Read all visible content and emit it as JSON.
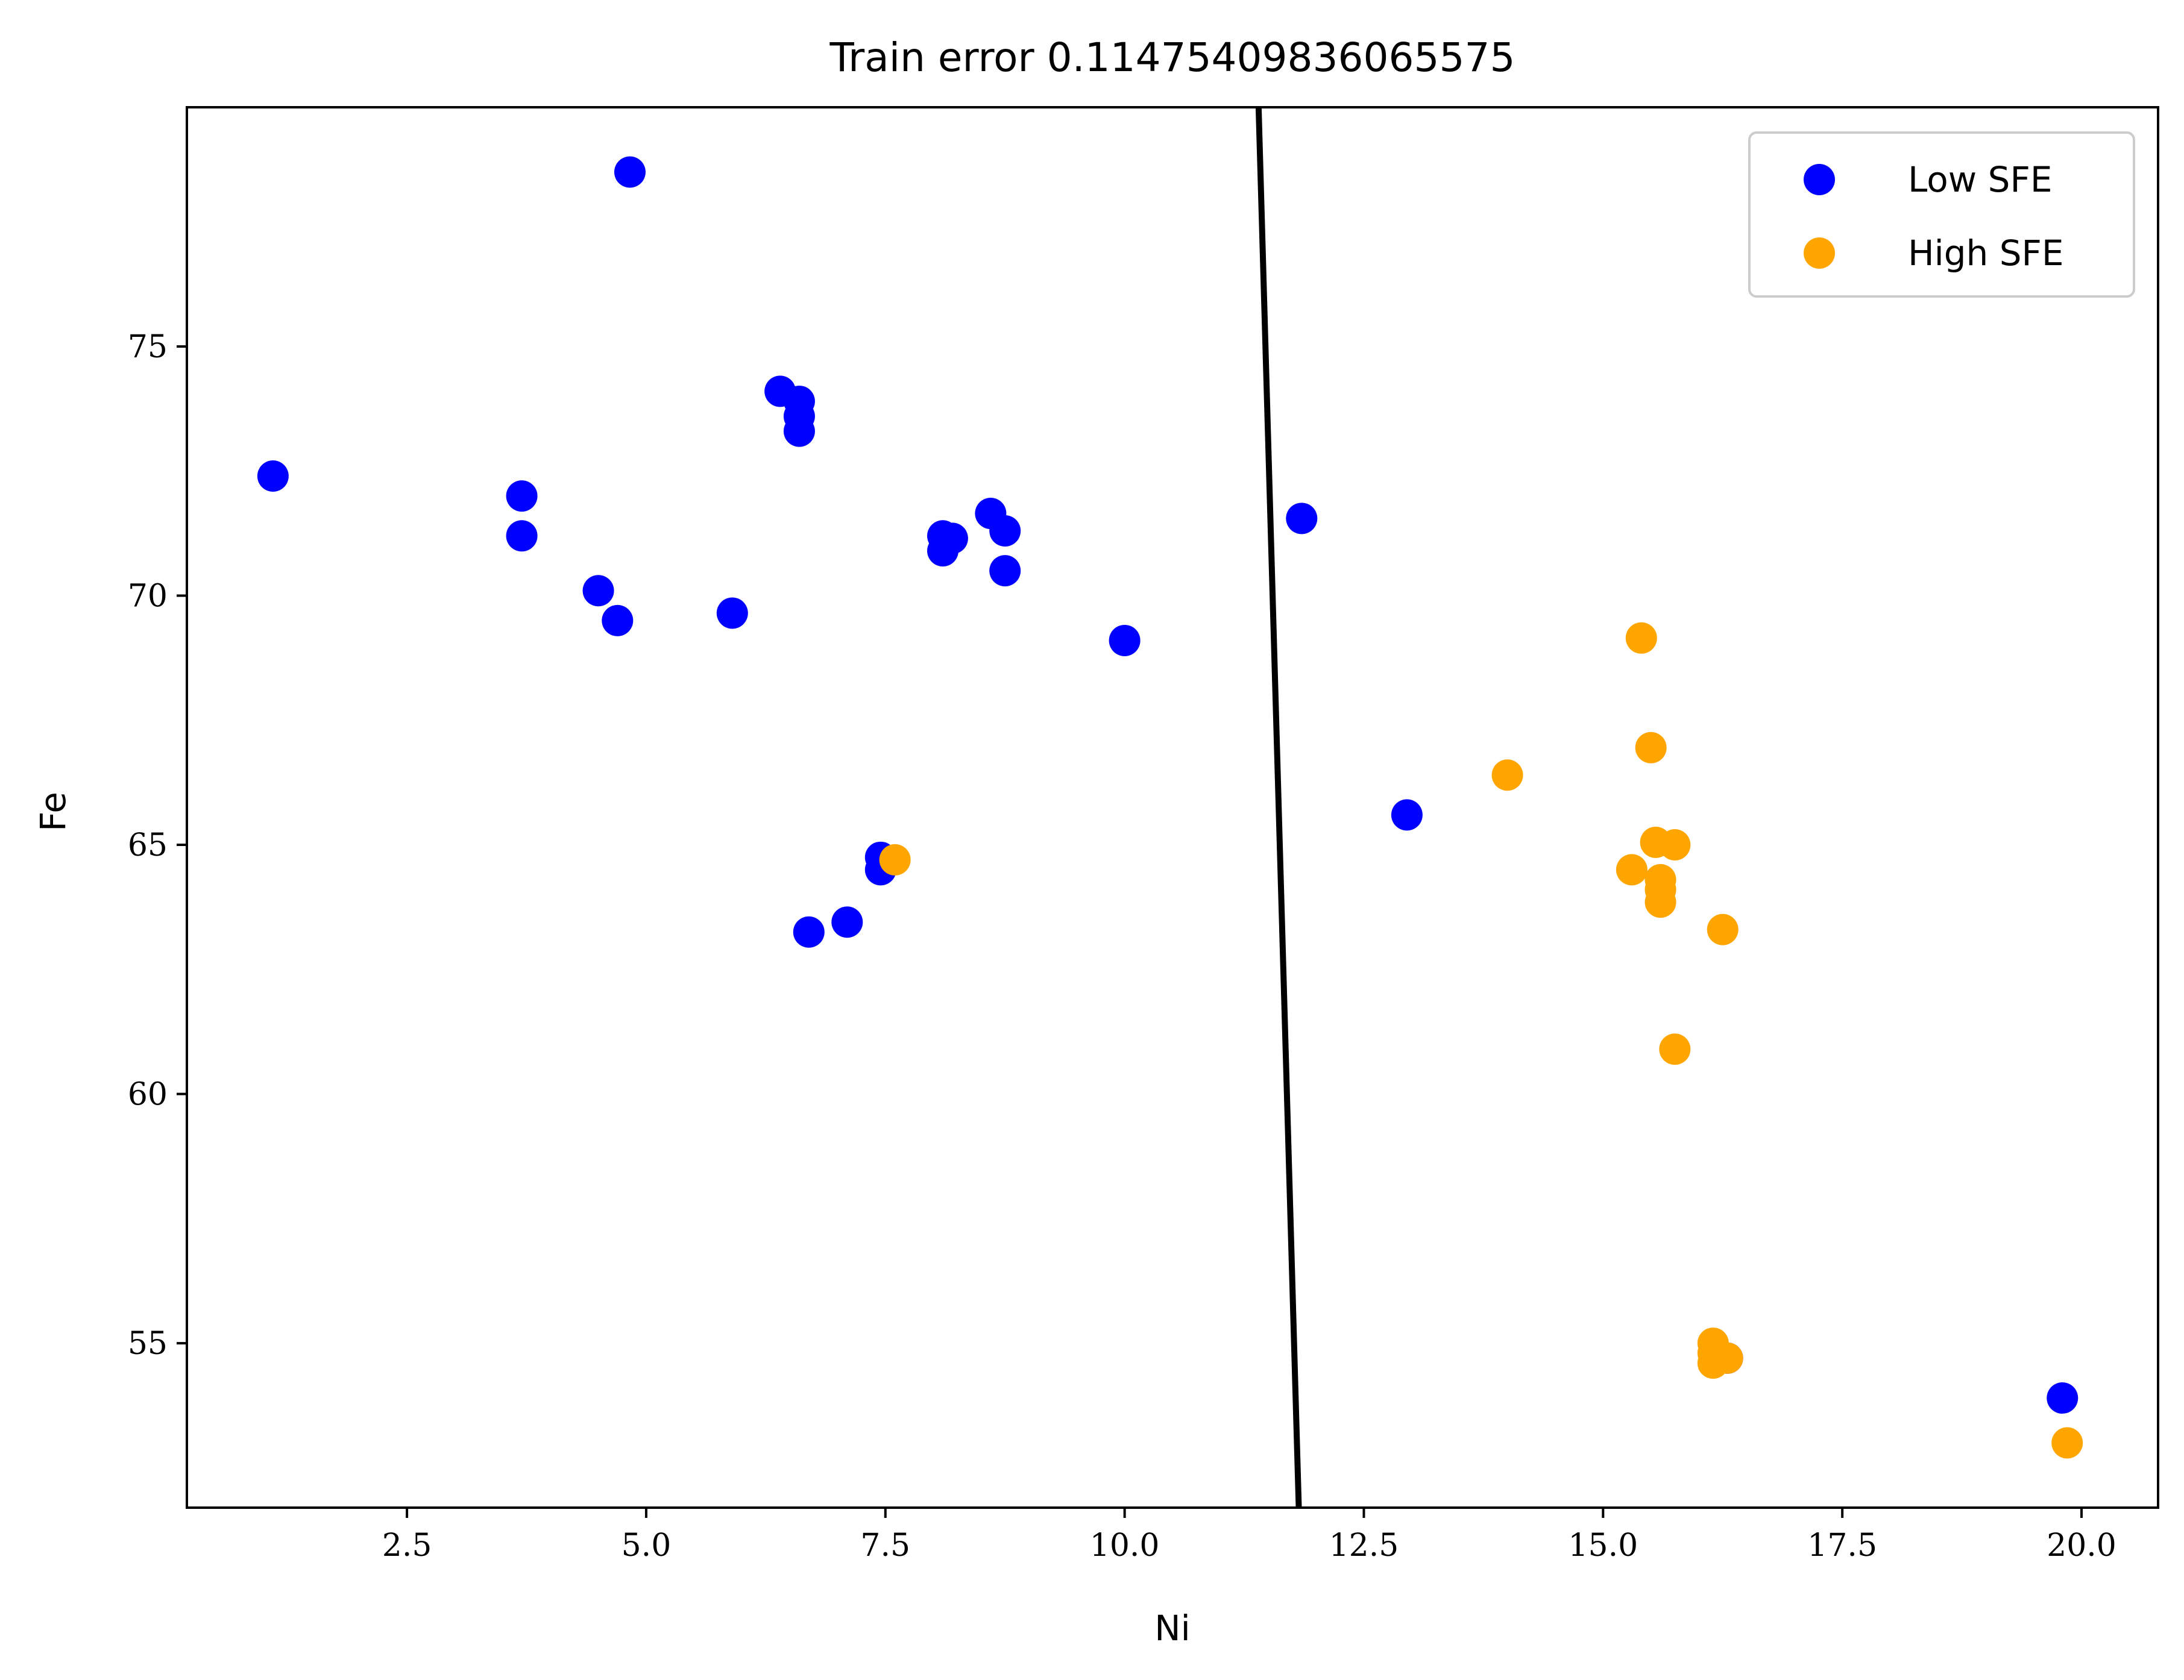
{
  "chart_data": {
    "type": "scatter",
    "title": "Train error 0.11475409836065575",
    "xlabel": "Ni",
    "ylabel": "Fe",
    "xlim": [
      0.2,
      20.8
    ],
    "ylim": [
      51.7,
      79.8
    ],
    "xticks": [
      2.5,
      5.0,
      7.5,
      10.0,
      12.5,
      15.0,
      17.5,
      20.0
    ],
    "xtick_labels": [
      "2.5",
      "5.0",
      "7.5",
      "10.0",
      "12.5",
      "15.0",
      "17.5",
      "20.0"
    ],
    "yticks": [
      55,
      60,
      65,
      70,
      75
    ],
    "ytick_labels": [
      "55",
      "60",
      "65",
      "70",
      "75"
    ],
    "grid": false,
    "legend_position": "top-right",
    "series": [
      {
        "name": "Low SFE",
        "color": "#0000ff",
        "points": [
          [
            1.1,
            72.4
          ],
          [
            3.7,
            72.0
          ],
          [
            3.7,
            71.2
          ],
          [
            4.5,
            70.1
          ],
          [
            4.7,
            69.5
          ],
          [
            4.83,
            78.5
          ],
          [
            5.9,
            69.65
          ],
          [
            6.4,
            74.1
          ],
          [
            6.6,
            73.9
          ],
          [
            6.6,
            73.6
          ],
          [
            6.6,
            73.3
          ],
          [
            6.7,
            63.25
          ],
          [
            7.1,
            63.45
          ],
          [
            7.45,
            64.75
          ],
          [
            7.45,
            64.5
          ],
          [
            8.1,
            71.2
          ],
          [
            8.1,
            70.9
          ],
          [
            8.2,
            71.15
          ],
          [
            8.6,
            71.65
          ],
          [
            8.75,
            71.3
          ],
          [
            8.75,
            70.5
          ],
          [
            10.0,
            69.1
          ],
          [
            11.85,
            71.55
          ],
          [
            12.95,
            65.6
          ],
          [
            16.3,
            54.7
          ],
          [
            19.8,
            53.9
          ]
        ]
      },
      {
        "name": "High SFE",
        "color": "#ffa500",
        "points": [
          [
            7.6,
            64.7
          ],
          [
            14.0,
            66.4
          ],
          [
            15.3,
            64.5
          ],
          [
            15.4,
            69.15
          ],
          [
            15.5,
            66.95
          ],
          [
            15.55,
            65.05
          ],
          [
            15.6,
            64.3
          ],
          [
            15.6,
            64.1
          ],
          [
            15.6,
            63.85
          ],
          [
            15.75,
            65.0
          ],
          [
            15.75,
            60.9
          ],
          [
            16.15,
            55.0
          ],
          [
            16.15,
            54.8
          ],
          [
            16.15,
            54.6
          ],
          [
            16.25,
            63.3
          ],
          [
            16.3,
            54.7
          ],
          [
            19.85,
            53.0
          ]
        ]
      }
    ],
    "decision_boundary": {
      "color": "#000000",
      "points": [
        [
          11.4,
          79.8
        ],
        [
          11.82,
          51.7
        ]
      ]
    }
  }
}
